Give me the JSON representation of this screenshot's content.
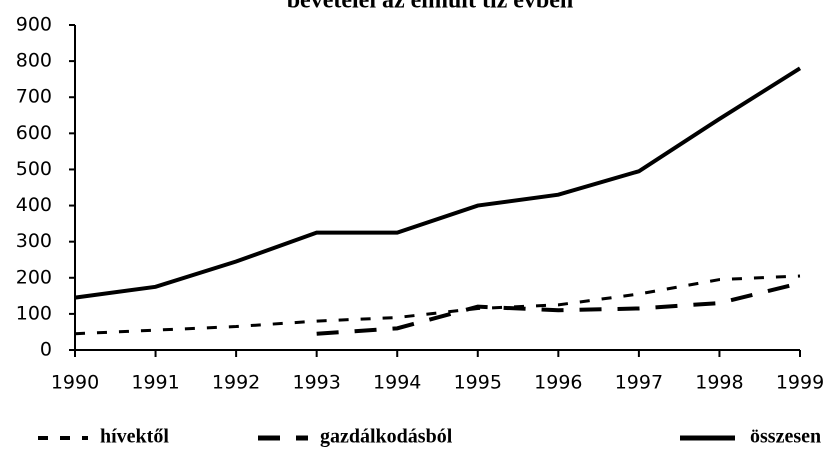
{
  "chart_data": {
    "type": "line",
    "title": "bevételei az elmúlt tíz évben",
    "x": [
      1990,
      1991,
      1992,
      1993,
      1994,
      1995,
      1996,
      1997,
      1998,
      1999
    ],
    "xlim": [
      1990,
      1999
    ],
    "xticks": [
      1990,
      1991,
      1992,
      1993,
      1994,
      1995,
      1996,
      1997,
      1998,
      1999
    ],
    "ylim": [
      0,
      900
    ],
    "yticks": [
      0,
      100,
      200,
      300,
      400,
      500,
      600,
      700,
      800,
      900
    ],
    "series": [
      {
        "name": "hívektől",
        "color": "#000000",
        "dash": "short",
        "values": [
          45,
          55,
          65,
          80,
          90,
          115,
          125,
          155,
          195,
          205
        ]
      },
      {
        "name": "gazdálkodásból",
        "color": "#000000",
        "dash": "long",
        "values": [
          null,
          null,
          null,
          45,
          60,
          120,
          110,
          115,
          130,
          185
        ]
      },
      {
        "name": "összesen",
        "color": "#000000",
        "dash": "solid",
        "values": [
          145,
          175,
          245,
          325,
          325,
          400,
          430,
          495,
          640,
          780
        ]
      }
    ]
  }
}
